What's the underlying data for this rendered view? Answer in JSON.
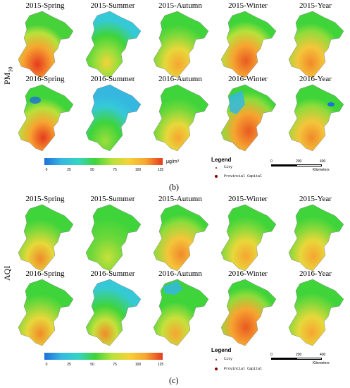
{
  "pm10": {
    "label": "PM",
    "label_sub": "10",
    "panels_2015": [
      "2015-Spring",
      "2015-Summer",
      "2015-Autumn",
      "2015-Winter",
      "2015-Year"
    ],
    "panels_2016": [
      "2016-Spring",
      "2016-Summer",
      "2016-Autumn",
      "2016-Winter",
      "2016-Year"
    ],
    "colorbar_ticks": [
      "0",
      "25",
      "50",
      "75",
      "100",
      "125"
    ],
    "colorbar_unit": "μg/m³",
    "legend_title": "Legend",
    "legend_city": "City",
    "legend_capital": "Provincial Capital",
    "scale_ticks": [
      "0",
      "200",
      "400"
    ],
    "scale_unit": "Kilometers",
    "sublabel": "(b)"
  },
  "aqi": {
    "label": "AQI",
    "panels_2015": [
      "2015-Spring",
      "2015-Summer",
      "2015-Autumn",
      "2015-Winter",
      "2015-Year"
    ],
    "panels_2016": [
      "2016-Spring",
      "2016-Summer",
      "2016-Autumn",
      "2016-Winter",
      "2016-Year"
    ],
    "colorbar_ticks": [
      "0",
      "25",
      "50",
      "75",
      "100",
      "125"
    ],
    "legend_title": "Legend",
    "legend_city": "City",
    "legend_capital": "Provincial Capital",
    "scale_ticks": [
      "0",
      "200",
      "400"
    ],
    "scale_unit": "Kilometers",
    "sublabel": "(c)"
  },
  "colors": {
    "low": "#1e6fd9",
    "mid": "#3fd43a",
    "high": "#e53a1f"
  }
}
